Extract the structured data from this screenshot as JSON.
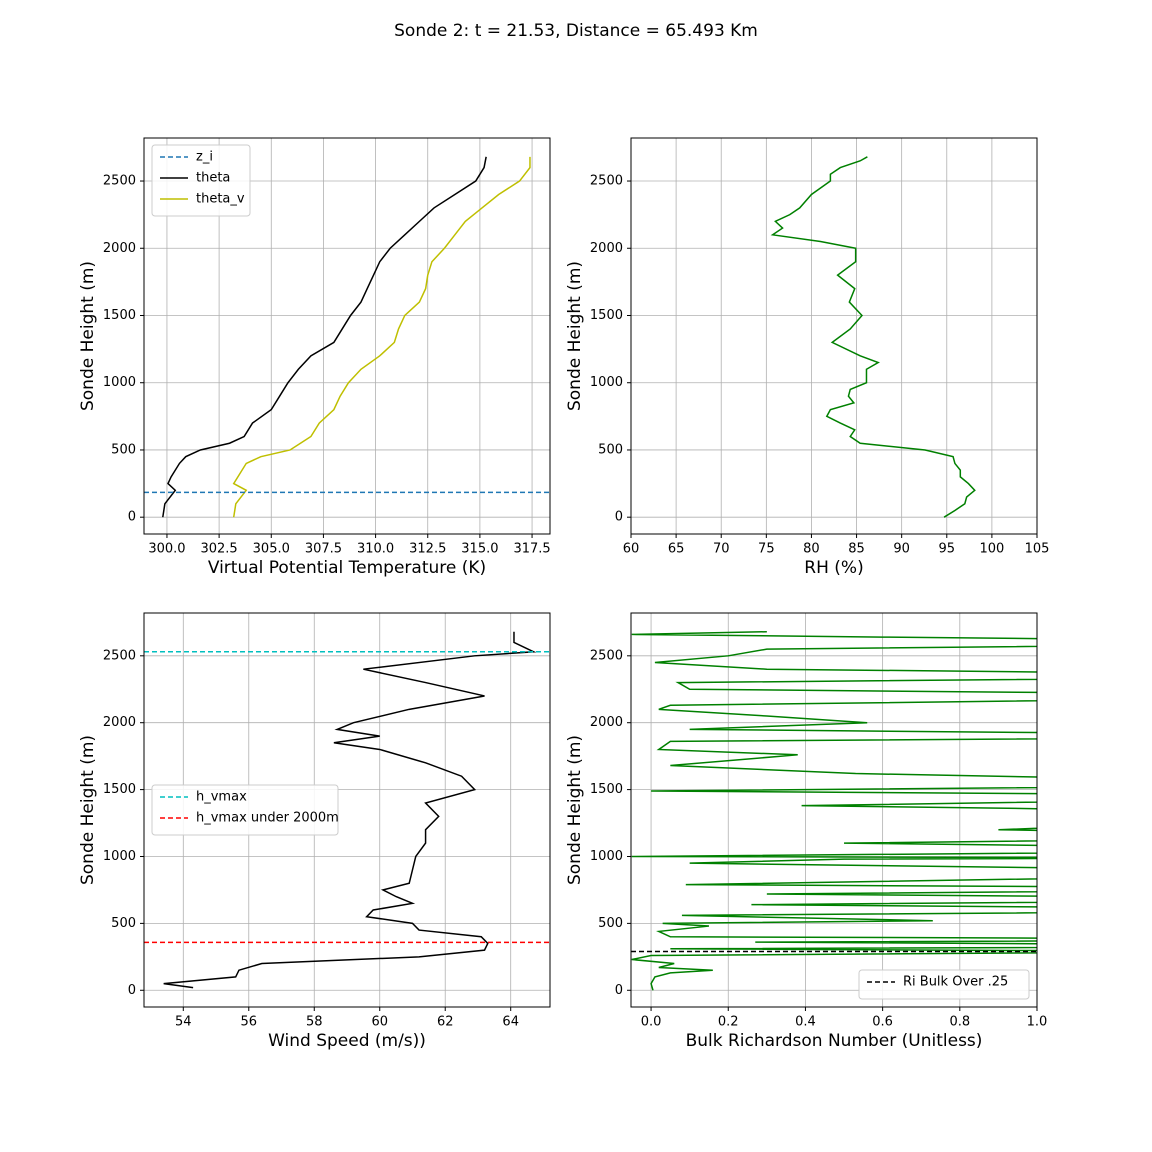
{
  "title": "Sonde 2: t = 21.53, Distance = 65.493 Km",
  "chart_data": [
    {
      "type": "line",
      "xlabel": "Virtual Potential Temperature (K)",
      "ylabel": "Sonde Height (m)",
      "xlim": [
        298.9,
        318.36
      ],
      "ylim": [
        -125,
        2820
      ],
      "xticks": [
        {
          "value": 300,
          "label": "300.0"
        },
        {
          "value": 302.5,
          "label": "302.5"
        },
        {
          "value": 305,
          "label": "305.0"
        },
        {
          "value": 307.5,
          "label": "307.5"
        },
        {
          "value": 310,
          "label": "310.0"
        },
        {
          "value": 312.5,
          "label": "312.5"
        },
        {
          "value": 315,
          "label": "315.0"
        },
        {
          "value": 317.5,
          "label": "317.5"
        }
      ],
      "yticks": [
        0,
        500,
        1000,
        1500,
        2000,
        2500
      ],
      "grid": true,
      "legend": "upper left",
      "y": [
        0,
        100,
        200,
        250,
        300,
        400,
        450,
        500,
        550,
        600,
        700,
        800,
        900,
        1000,
        1100,
        1200,
        1300,
        1400,
        1500,
        1600,
        1700,
        1800,
        1900,
        2000,
        2100,
        2200,
        2300,
        2400,
        2500,
        2600,
        2680
      ],
      "hlines": [
        {
          "name": "z_i",
          "color": "#1f77b4",
          "value": 185
        }
      ],
      "series": [
        {
          "name": "theta",
          "color": "#000000",
          "values": [
            299.8,
            299.9,
            300.4,
            300.05,
            300.2,
            300.6,
            300.9,
            301.6,
            303.0,
            303.7,
            304.1,
            305.0,
            305.4,
            305.8,
            306.3,
            306.9,
            308.0,
            308.4,
            308.8,
            309.3,
            309.6,
            309.9,
            310.2,
            310.7,
            311.4,
            312.1,
            312.8,
            313.8,
            314.8,
            315.2,
            315.3
          ]
        },
        {
          "name": "theta_v",
          "color": "#bfbf00",
          "values": [
            303.2,
            303.3,
            303.8,
            303.2,
            303.4,
            303.8,
            304.5,
            305.9,
            306.4,
            306.9,
            307.3,
            308.0,
            308.3,
            308.7,
            309.3,
            310.2,
            310.9,
            311.1,
            311.4,
            312.1,
            312.4,
            312.5,
            312.7,
            313.3,
            313.8,
            314.3,
            315.1,
            315.9,
            316.9,
            317.4,
            317.4
          ]
        }
      ]
    },
    {
      "type": "line",
      "xlabel": "RH (%)",
      "ylabel": "Sonde Height (m)",
      "xlim": [
        60,
        105
      ],
      "ylim": [
        -125,
        2820
      ],
      "xticks": [
        60,
        65,
        70,
        75,
        80,
        85,
        90,
        95,
        100,
        105
      ],
      "yticks": [
        0,
        500,
        1000,
        1500,
        2000,
        2500
      ],
      "grid": true,
      "y": [
        0,
        50,
        100,
        150,
        200,
        250,
        300,
        350,
        400,
        450,
        500,
        550,
        600,
        650,
        700,
        750,
        800,
        850,
        900,
        950,
        1000,
        1100,
        1150,
        1200,
        1300,
        1400,
        1500,
        1600,
        1700,
        1800,
        1900,
        2000,
        2050,
        2100,
        2150,
        2200,
        2250,
        2300,
        2400,
        2500,
        2550,
        2600,
        2650,
        2680
      ],
      "series": [
        {
          "color": "#008000",
          "values": [
            94.7,
            95.9,
            97.0,
            97.2,
            98.1,
            97.4,
            96.5,
            96.5,
            95.9,
            95.7,
            92.6,
            85.4,
            84.3,
            84.8,
            83.2,
            81.7,
            82.1,
            84.7,
            84.1,
            84.3,
            86.1,
            86.1,
            87.4,
            85.4,
            82.3,
            84.3,
            85.6,
            84.2,
            84.8,
            82.9,
            84.9,
            84.9,
            81.0,
            75.7,
            76.8,
            76.0,
            77.6,
            78.7,
            80.0,
            82.1,
            82.1,
            83.2,
            85.4,
            86.2
          ]
        }
      ]
    },
    {
      "type": "line",
      "xlabel": "Wind Speed (m/s))",
      "ylabel": "Sonde Height (m)",
      "xlim": [
        52.8,
        65.2
      ],
      "ylim": [
        -125,
        2820
      ],
      "xticks": [
        54,
        56,
        58,
        60,
        62,
        64
      ],
      "yticks": [
        0,
        500,
        1000,
        1500,
        2000,
        2500
      ],
      "grid": true,
      "legend": "center left",
      "y": [
        20,
        50,
        100,
        150,
        200,
        250,
        300,
        350,
        400,
        450,
        500,
        550,
        600,
        650,
        700,
        750,
        800,
        900,
        1000,
        1100,
        1200,
        1300,
        1400,
        1500,
        1600,
        1700,
        1800,
        1850,
        1900,
        1950,
        2000,
        2100,
        2200,
        2300,
        2400,
        2500,
        2530,
        2600,
        2680
      ],
      "hlines": [
        {
          "name": "h_vmax",
          "color": "#00bfbf",
          "value": 2530
        },
        {
          "name": "h_vmax under 2000m",
          "color": "#ff0000",
          "value": 358
        }
      ],
      "series": [
        {
          "color": "#000000",
          "values": [
            54.3,
            53.4,
            55.6,
            55.7,
            56.4,
            61.2,
            63.2,
            63.3,
            63.1,
            61.2,
            61.0,
            59.6,
            59.8,
            61.0,
            60.5,
            60.1,
            60.9,
            61.0,
            61.1,
            61.4,
            61.4,
            61.8,
            61.4,
            62.9,
            62.5,
            61.4,
            60.0,
            58.6,
            60.0,
            58.7,
            59.2,
            60.9,
            63.2,
            61.4,
            59.5,
            62.9,
            64.7,
            64.1,
            64.1
          ]
        }
      ]
    },
    {
      "type": "line",
      "xlabel": "Bulk Richardson Number (Unitless)",
      "ylabel": "Sonde Height (m)",
      "xlim": [
        -0.052,
        1.0
      ],
      "ylim": [
        -125,
        2820
      ],
      "xticks": [
        {
          "value": 0,
          "label": "0.0"
        },
        {
          "value": 0.2,
          "label": "0.2"
        },
        {
          "value": 0.4,
          "label": "0.4"
        },
        {
          "value": 0.6,
          "label": "0.6"
        },
        {
          "value": 0.8,
          "label": "0.8"
        },
        {
          "value": 1.0,
          "label": "1.0"
        }
      ],
      "yticks": [
        0,
        500,
        1000,
        1500,
        2000,
        2500
      ],
      "grid": true,
      "legend": "lower right",
      "y": [
        0,
        50,
        100,
        130,
        150,
        170,
        200,
        230,
        260,
        290,
        310,
        330,
        360,
        380,
        400,
        440,
        480,
        500,
        520,
        560,
        600,
        640,
        680,
        720,
        760,
        790,
        880,
        950,
        980,
        990,
        1000,
        1050,
        1100,
        1150,
        1200,
        1320,
        1380,
        1450,
        1490,
        1540,
        1620,
        1680,
        1760,
        1800,
        1860,
        1900,
        1950,
        2000,
        2050,
        2100,
        2130,
        2200,
        2250,
        2300,
        2350,
        2400,
        2450,
        2500,
        2550,
        2600,
        2640,
        2660,
        2680
      ],
      "hlines": [
        {
          "name": "Ri Bulk Over .25",
          "color": "#000000",
          "value": 290
        }
      ],
      "series": [
        {
          "color": "#008000",
          "values": [
            0.005,
            0.0,
            0.01,
            0.05,
            0.16,
            0.02,
            0.06,
            -0.05,
            0.0,
            1.5,
            0.05,
            2.0,
            0.27,
            2.0,
            0.05,
            0.02,
            0.15,
            0.03,
            0.73,
            0.08,
            2.0,
            0.26,
            2.0,
            0.3,
            2.0,
            0.09,
            2.0,
            0.1,
            0.5,
            1.5,
            -0.05,
            2.0,
            0.5,
            2.0,
            0.9,
            2.0,
            0.39,
            2.0,
            0.0,
            2.0,
            0.53,
            0.05,
            0.38,
            0.02,
            0.05,
            2.0,
            0.1,
            0.56,
            0.3,
            0.02,
            0.05,
            2.0,
            0.1,
            0.07,
            2.0,
            0.3,
            0.01,
            0.2,
            0.3,
            2.0,
            0.6,
            -0.05,
            0.3
          ]
        }
      ]
    }
  ]
}
